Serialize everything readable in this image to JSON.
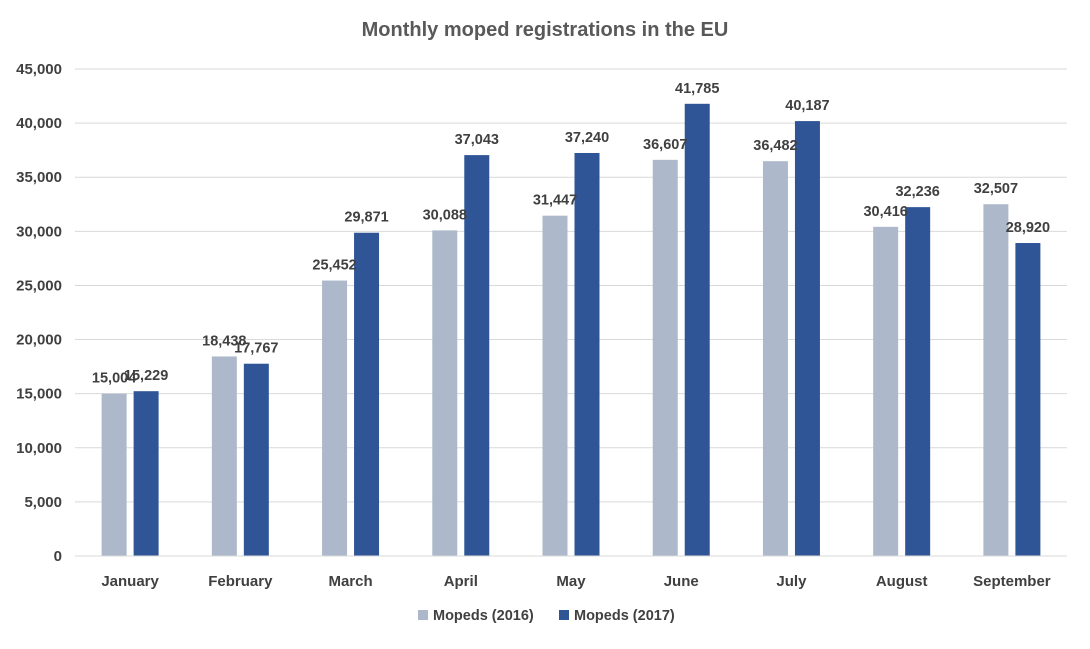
{
  "chart_data": {
    "type": "bar",
    "title": "Monthly moped registrations in the EU",
    "xlabel": "",
    "ylabel": "",
    "categories": [
      "January",
      "February",
      "March",
      "April",
      "May",
      "June",
      "July",
      "August",
      "September"
    ],
    "series": [
      {
        "name": "Mopeds (2016)",
        "color": "#adb9ca",
        "values": [
          15004,
          18438,
          25452,
          30088,
          31447,
          36607,
          36482,
          30416,
          32507
        ],
        "labels": [
          "15,004",
          "18,438",
          "25,452",
          "30,088",
          "31,447",
          "36,607",
          "36,482",
          "30,416",
          "32,507"
        ]
      },
      {
        "name": "Mopeds (2017)",
        "color": "#2f5597",
        "values": [
          15229,
          17767,
          29871,
          37043,
          37240,
          41785,
          40187,
          32236,
          28920
        ],
        "labels": [
          "15,229",
          "17,767",
          "29,871",
          "37,043",
          "37,240",
          "41,785",
          "40,187",
          "32,236",
          "28,920"
        ]
      }
    ],
    "ylim": [
      0,
      45000
    ],
    "yticks": [
      0,
      5000,
      10000,
      15000,
      20000,
      25000,
      30000,
      35000,
      40000,
      45000
    ],
    "ytick_labels": [
      "0",
      "5,000",
      "10,000",
      "15,000",
      "20,000",
      "25,000",
      "30,000",
      "35,000",
      "40,000",
      "45,000"
    ],
    "grid": true,
    "legend_position": "bottom-center",
    "data_labels": true
  }
}
